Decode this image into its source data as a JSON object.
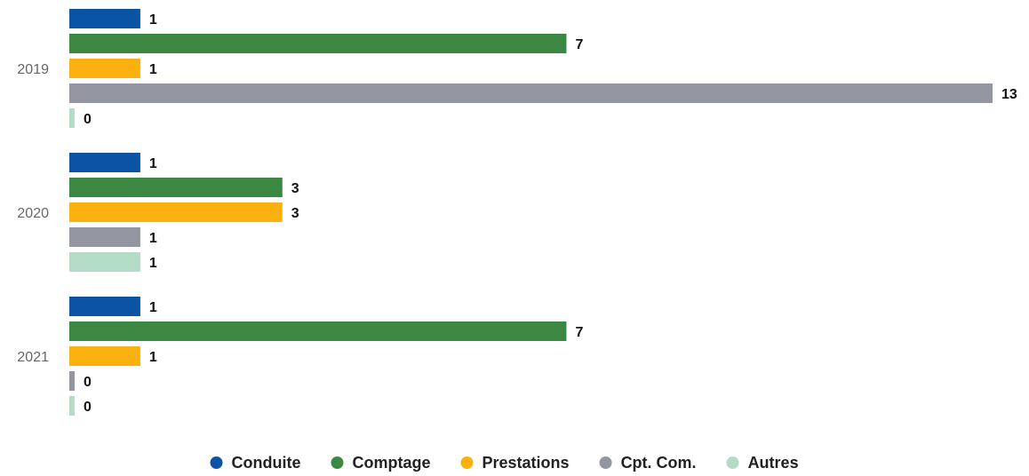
{
  "chart_data": {
    "type": "bar",
    "orientation": "horizontal",
    "categories": [
      "2019",
      "2020",
      "2021"
    ],
    "series": [
      {
        "name": "Conduite",
        "color": "#0a53a5",
        "values": [
          1,
          1,
          1
        ]
      },
      {
        "name": "Comptage",
        "color": "#3c8843",
        "values": [
          7,
          3,
          7
        ]
      },
      {
        "name": "Prestations",
        "color": "#fab10f",
        "values": [
          1,
          3,
          1
        ]
      },
      {
        "name": "Cpt. Com.",
        "color": "#9396a1",
        "values": [
          13,
          1,
          0
        ]
      },
      {
        "name": "Autres",
        "color": "#b3dbc6",
        "values": [
          0,
          1,
          0
        ]
      }
    ],
    "xlim": [
      0,
      13
    ],
    "grid": false,
    "legend": "bottom-center",
    "data_labels": true
  }
}
